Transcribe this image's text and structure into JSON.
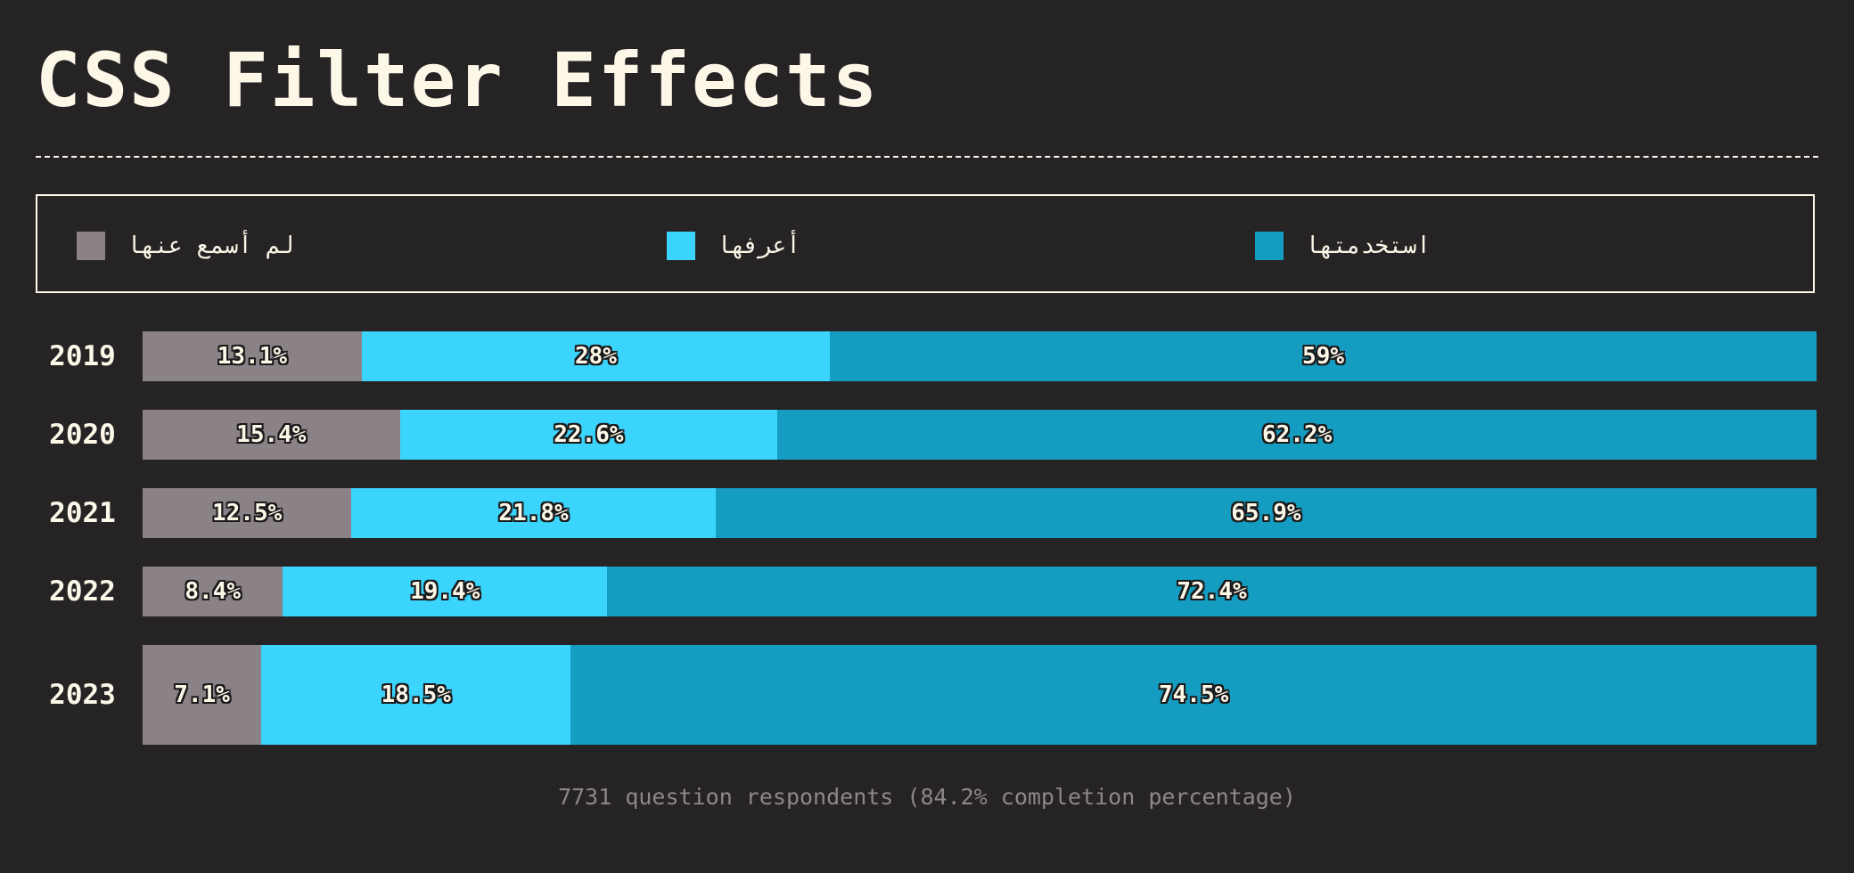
{
  "title": "CSS Filter Effects",
  "legend": [
    {
      "label": "لم أسمع عنها",
      "color": "#8a8286"
    },
    {
      "label": "أعرفها",
      "color": "#3ad4fd"
    },
    {
      "label": "استخدمتها",
      "color": "#149cc1"
    }
  ],
  "chart_data": {
    "type": "bar",
    "orientation": "horizontal",
    "stacked": true,
    "categories": [
      "2019",
      "2020",
      "2021",
      "2022",
      "2023"
    ],
    "series": [
      {
        "name": "لم أسمع عنها",
        "color": "#8a8286",
        "values": [
          13.1,
          15.4,
          12.5,
          8.4,
          7.1
        ],
        "labels": [
          "13.1%",
          "15.4%",
          "12.5%",
          "8.4%",
          "7.1%"
        ]
      },
      {
        "name": "أعرفها",
        "color": "#3ad4fd",
        "values": [
          28,
          22.6,
          21.8,
          19.4,
          18.5
        ],
        "labels": [
          "28%",
          "22.6%",
          "21.8%",
          "19.4%",
          "18.5%"
        ]
      },
      {
        "name": "استخدمتها",
        "color": "#149cc1",
        "values": [
          59,
          62.2,
          65.9,
          72.4,
          74.5
        ],
        "labels": [
          "59%",
          "62.2%",
          "65.9%",
          "72.4%",
          "74.5%"
        ]
      }
    ],
    "legend_position": "top"
  },
  "footer": "7731 question respondents (84.2% completion percentage)"
}
